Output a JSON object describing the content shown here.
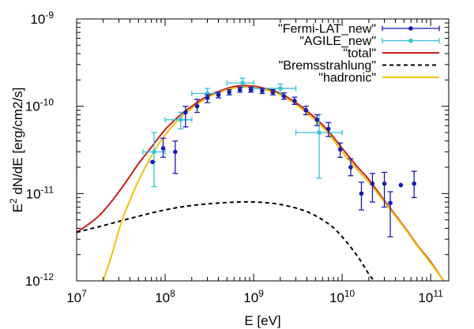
{
  "chart_data": {
    "type": "scatter",
    "title": "",
    "xlabel": "E [eV]",
    "ylabel": "E2 dN/dE [erg/cm2/s]",
    "xscale": "log",
    "yscale": "log",
    "xlim": [
      10000000.0,
      160000000000.0
    ],
    "ylim": [
      1e-12,
      1e-09
    ],
    "x_ticks": [
      {
        "value": 10000000.0,
        "base": "10",
        "exp": "7"
      },
      {
        "value": 100000000.0,
        "base": "10",
        "exp": "8"
      },
      {
        "value": 1000000000.0,
        "base": "10",
        "exp": "9"
      },
      {
        "value": 10000000000.0,
        "base": "10",
        "exp": "10"
      },
      {
        "value": 100000000000.0,
        "base": "10",
        "exp": "11"
      }
    ],
    "y_ticks": [
      {
        "value": 1e-12,
        "base": "10",
        "exp": "-12"
      },
      {
        "value": 1e-11,
        "base": "10",
        "exp": "-11"
      },
      {
        "value": 1e-10,
        "base": "10",
        "exp": "-10"
      },
      {
        "value": 1e-09,
        "base": "10",
        "exp": "-9"
      }
    ],
    "legend_position": "top-right",
    "series": [
      {
        "name": "\"Fermi-LAT_new\"",
        "kind": "points",
        "color": "#1a1ab3",
        "points": [
          {
            "x": 72000000.0,
            "y": 2.3e-11,
            "yerr": [
              2.3e-11,
              2.3e-11
            ],
            "xerr": null
          },
          {
            "x": 95000000.0,
            "y": 3.3e-11,
            "yerr": [
              2.6e-11,
              4.3e-11
            ],
            "xerr": null
          },
          {
            "x": 130000000.0,
            "y": 3e-11,
            "yerr": [
              1.7e-11,
              4e-11
            ],
            "xerr": null
          },
          {
            "x": 170000000.0,
            "y": 8.5e-11,
            "yerr": [
              5.8e-11,
              1e-10
            ],
            "xerr": null
          },
          {
            "x": 230000000.0,
            "y": 1e-10,
            "yerr": [
              8.5e-11,
              1.2e-10
            ],
            "xerr": null
          },
          {
            "x": 300000000.0,
            "y": 1.25e-10,
            "yerr": [
              1.1e-10,
              1.35e-10
            ],
            "xerr": null
          },
          {
            "x": 400000000.0,
            "y": 1.35e-10,
            "yerr": [
              1.25e-10,
              1.45e-10
            ],
            "xerr": null
          },
          {
            "x": 530000000.0,
            "y": 1.45e-10,
            "yerr": [
              1.35e-10,
              1.55e-10
            ],
            "xerr": null
          },
          {
            "x": 700000000.0,
            "y": 1.55e-10,
            "yerr": [
              1.45e-10,
              1.65e-10
            ],
            "xerr": null
          },
          {
            "x": 930000000.0,
            "y": 1.55e-10,
            "yerr": [
              1.45e-10,
              1.65e-10
            ],
            "xerr": null
          },
          {
            "x": 1250000000.0,
            "y": 1.5e-10,
            "yerr": [
              1.4e-10,
              1.6e-10
            ],
            "xerr": null
          },
          {
            "x": 1650000000.0,
            "y": 1.45e-10,
            "yerr": [
              1.35e-10,
              1.55e-10
            ],
            "xerr": null
          },
          {
            "x": 2200000000.0,
            "y": 1.3e-10,
            "yerr": [
              1.2e-10,
              1.42e-10
            ],
            "xerr": null
          },
          {
            "x": 2900000000.0,
            "y": 1.15e-10,
            "yerr": [
              1.05e-10,
              1.27e-10
            ],
            "xerr": null
          },
          {
            "x": 3900000000.0,
            "y": 9e-11,
            "yerr": [
              8e-11,
              1e-10
            ],
            "xerr": null
          },
          {
            "x": 5200000000.0,
            "y": 7e-11,
            "yerr": [
              6e-11,
              8e-11
            ],
            "xerr": null
          },
          {
            "x": 7000000000.0,
            "y": 5.5e-11,
            "yerr": [
              4.5e-11,
              6.5e-11
            ],
            "xerr": null
          },
          {
            "x": 9500000000.0,
            "y": 3.2e-11,
            "yerr": [
              2.6e-11,
              3.8e-11
            ],
            "xerr": null
          },
          {
            "x": 12500000000.0,
            "y": 2e-11,
            "yerr": [
              1.6e-11,
              2.5e-11
            ],
            "xerr": null
          },
          {
            "x": 16500000000.0,
            "y": 1e-11,
            "yerr": [
              6.5e-12,
              1.35e-11
            ],
            "xerr": null
          },
          {
            "x": 22000000000.0,
            "y": 1.3e-11,
            "yerr": [
              8e-12,
              1.7e-11
            ],
            "xerr": null
          },
          {
            "x": 30000000000.0,
            "y": 1.3e-11,
            "yerr": [
              7e-12,
              1.75e-11
            ],
            "xerr": null
          },
          {
            "x": 35000000000.0,
            "y": 7.8e-12,
            "yerr": [
              3.2e-12,
              1.05e-11
            ],
            "xerr": null
          },
          {
            "x": 46000000000.0,
            "y": 1.25e-11,
            "yerr": null,
            "xerr": null
          },
          {
            "x": 65000000000.0,
            "y": 1.3e-11,
            "yerr": [
              9e-12,
              1.8e-11
            ],
            "xerr": null
          }
        ]
      },
      {
        "name": "\"AGILE_new\"",
        "kind": "points",
        "color": "#33c4d6",
        "points": [
          {
            "x": 75000000.0,
            "y": 3e-11,
            "yerr": [
              1.2e-11,
              5e-11
            ],
            "xerr": [
              56000000.0,
              100000000.0
            ]
          },
          {
            "x": 150000000.0,
            "y": 7e-11,
            "yerr": [
              5.5e-11,
              8.5e-11
            ],
            "xerr": [
              100000000.0,
              200000000.0
            ]
          },
          {
            "x": 300000000.0,
            "y": 1.4e-10,
            "yerr": [
              1.2e-10,
              1.6e-10
            ],
            "xerr": [
              200000000.0,
              400000000.0
            ]
          },
          {
            "x": 750000000.0,
            "y": 1.85e-10,
            "yerr": [
              1.65e-10,
              2.1e-10
            ],
            "xerr": [
              500000000.0,
              1000000000.0
            ]
          },
          {
            "x": 2000000000.0,
            "y": 1.6e-10,
            "yerr": [
              1.4e-10,
              1.8e-10
            ],
            "xerr": [
              1000000000.0,
              3000000000.0
            ]
          },
          {
            "x": 5500000000.0,
            "y": 5e-11,
            "yerr": [
              1.5e-11,
              8e-11
            ],
            "xerr": [
              3000000000.0,
              10000000000.0
            ]
          }
        ]
      },
      {
        "name": "\"total\"",
        "kind": "line",
        "color": "#c81e1e",
        "dash": "none",
        "points": [
          {
            "x": 10000000.0,
            "y": 3.6e-12
          },
          {
            "x": 13000000.0,
            "y": 4.3e-12
          },
          {
            "x": 18000000.0,
            "y": 5.6e-12
          },
          {
            "x": 25000000.0,
            "y": 8.2e-12
          },
          {
            "x": 35000000.0,
            "y": 1.3e-11
          },
          {
            "x": 50000000.0,
            "y": 2.2e-11
          },
          {
            "x": 70000000.0,
            "y": 3.4e-11
          },
          {
            "x": 100000000.0,
            "y": 5.4e-11
          },
          {
            "x": 150000000.0,
            "y": 8e-11
          },
          {
            "x": 200000000.0,
            "y": 1e-10
          },
          {
            "x": 300000000.0,
            "y": 1.3e-10
          },
          {
            "x": 500000000.0,
            "y": 1.6e-10
          },
          {
            "x": 700000000.0,
            "y": 1.72e-10
          },
          {
            "x": 1000000000.0,
            "y": 1.7e-10
          },
          {
            "x": 1500000000.0,
            "y": 1.55e-10
          },
          {
            "x": 2000000000.0,
            "y": 1.4e-10
          },
          {
            "x": 3000000000.0,
            "y": 1.1e-10
          },
          {
            "x": 5000000000.0,
            "y": 7.3e-11
          },
          {
            "x": 7000000000.0,
            "y": 5.2e-11
          },
          {
            "x": 10000000000.0,
            "y": 3.3e-11
          },
          {
            "x": 15000000000.0,
            "y": 2e-11
          },
          {
            "x": 20000000000.0,
            "y": 1.45e-11
          },
          {
            "x": 30000000000.0,
            "y": 8.3e-12
          },
          {
            "x": 50000000000.0,
            "y": 4.2e-12
          },
          {
            "x": 70000000000.0,
            "y": 2.6e-12
          },
          {
            "x": 100000000000.0,
            "y": 1.65e-12
          },
          {
            "x": 140000000000.0,
            "y": 1e-12
          }
        ]
      },
      {
        "name": "\"Bremsstrahlung\"",
        "kind": "line",
        "color": "#000000",
        "dash": "5,4",
        "points": [
          {
            "x": 10000000.0,
            "y": 3.6e-12
          },
          {
            "x": 20000000.0,
            "y": 4.3e-12
          },
          {
            "x": 50000000.0,
            "y": 5.5e-12
          },
          {
            "x": 100000000.0,
            "y": 6.5e-12
          },
          {
            "x": 200000000.0,
            "y": 7.3e-12
          },
          {
            "x": 500000000.0,
            "y": 7.9e-12
          },
          {
            "x": 1000000000.0,
            "y": 8e-12
          },
          {
            "x": 2000000000.0,
            "y": 7.5e-12
          },
          {
            "x": 4000000000.0,
            "y": 6.2e-12
          },
          {
            "x": 7000000000.0,
            "y": 4.5e-12
          },
          {
            "x": 10000000000.0,
            "y": 3.2e-12
          },
          {
            "x": 15000000000.0,
            "y": 1.9e-12
          },
          {
            "x": 20000000000.0,
            "y": 1.2e-12
          },
          {
            "x": 23000000000.0,
            "y": 1e-12
          }
        ]
      },
      {
        "name": "\"hadronic\"",
        "kind": "line",
        "color": "#f0c20f",
        "dash": "none",
        "points": [
          {
            "x": 20000000.0,
            "y": 1e-12
          },
          {
            "x": 25000000.0,
            "y": 2e-12
          },
          {
            "x": 30000000.0,
            "y": 3.8e-12
          },
          {
            "x": 35000000.0,
            "y": 6e-12
          },
          {
            "x": 50000000.0,
            "y": 1.4e-11
          },
          {
            "x": 70000000.0,
            "y": 2.7e-11
          },
          {
            "x": 100000000.0,
            "y": 4.7e-11
          },
          {
            "x": 150000000.0,
            "y": 7.4e-11
          },
          {
            "x": 200000000.0,
            "y": 9.5e-11
          },
          {
            "x": 300000000.0,
            "y": 1.25e-10
          },
          {
            "x": 500000000.0,
            "y": 1.55e-10
          },
          {
            "x": 700000000.0,
            "y": 1.65e-10
          },
          {
            "x": 1000000000.0,
            "y": 1.63e-10
          },
          {
            "x": 1500000000.0,
            "y": 1.5e-10
          },
          {
            "x": 2000000000.0,
            "y": 1.35e-10
          },
          {
            "x": 3000000000.0,
            "y": 1.05e-10
          },
          {
            "x": 5000000000.0,
            "y": 6.9e-11
          },
          {
            "x": 7000000000.0,
            "y": 4.9e-11
          },
          {
            "x": 10000000000.0,
            "y": 3e-11
          },
          {
            "x": 15000000000.0,
            "y": 1.85e-11
          },
          {
            "x": 20000000000.0,
            "y": 1.35e-11
          },
          {
            "x": 30000000000.0,
            "y": 8e-12
          },
          {
            "x": 50000000000.0,
            "y": 4.1e-12
          },
          {
            "x": 70000000000.0,
            "y": 2.55e-12
          },
          {
            "x": 100000000000.0,
            "y": 1.6e-12
          },
          {
            "x": 140000000000.0,
            "y": 1e-12
          }
        ]
      }
    ]
  }
}
